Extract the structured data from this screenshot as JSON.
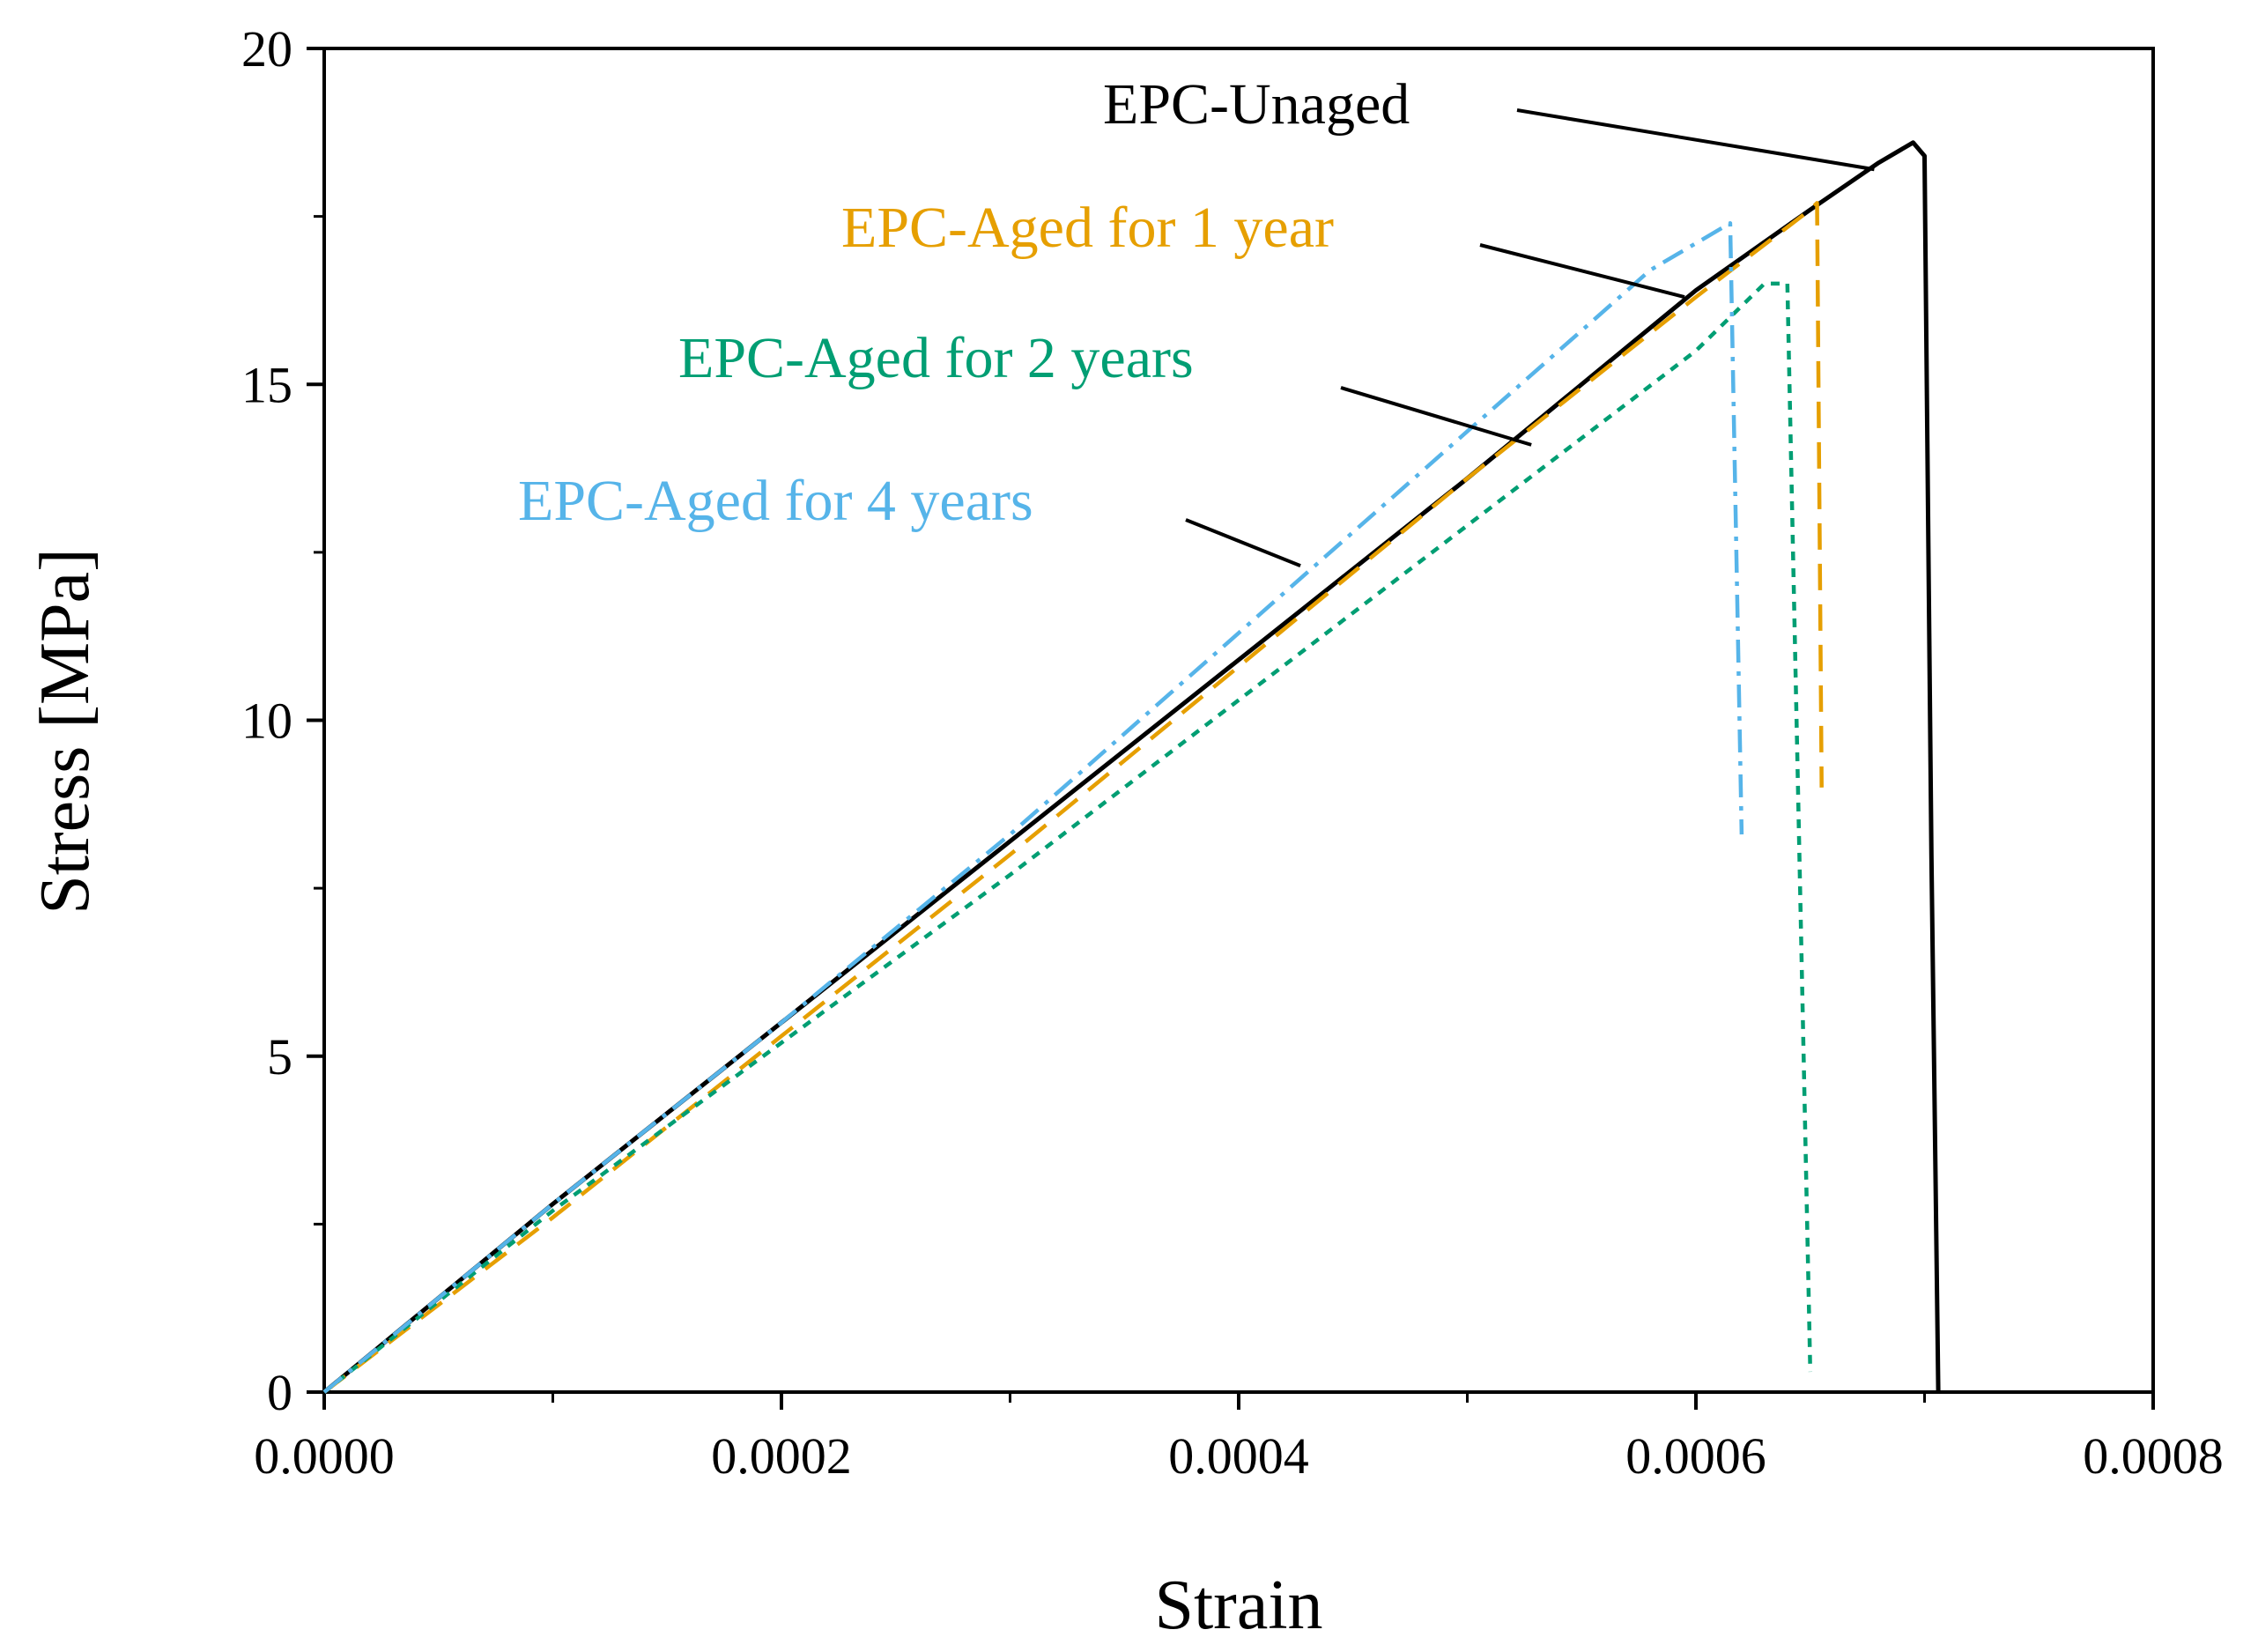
{
  "chart_data": {
    "type": "line",
    "title": "",
    "xlabel": "Strain",
    "ylabel": "Stress [MPa]",
    "xlim": [
      0,
      0.0008
    ],
    "ylim": [
      0,
      20
    ],
    "xticks": [
      "0.0000",
      "0.0002",
      "0.0004",
      "0.0006",
      "0.0008"
    ],
    "yticks": [
      "0",
      "5",
      "10",
      "15",
      "20"
    ],
    "grid": false,
    "legend": "annotations with leader lines",
    "series": [
      {
        "name": "EPC-Unaged",
        "color": "#000000",
        "dash": "solid",
        "x": [
          0,
          0.0001,
          0.0002,
          0.0003,
          0.0004,
          0.0005,
          0.0006,
          0.00065,
          0.00068,
          0.000695,
          0.0007,
          0.000703,
          0.000706
        ],
        "y": [
          0,
          2.8,
          5.5,
          8.2,
          10.9,
          13.6,
          16.4,
          17.6,
          18.3,
          18.6,
          18.4,
          8.0,
          0
        ]
      },
      {
        "name": "EPC-Aged for 1 year",
        "color": "#E69F00",
        "dash": "long-dash",
        "x": [
          0,
          0.0001,
          0.0002,
          0.0003,
          0.0004,
          0.0005,
          0.0006,
          0.00065,
          0.000653,
          0.000655
        ],
        "y": [
          0,
          2.6,
          5.3,
          8.0,
          10.8,
          13.6,
          16.3,
          17.6,
          17.7,
          9.0
        ]
      },
      {
        "name": "EPC-Aged for 2 years",
        "color": "#009E73",
        "dash": "short-dash",
        "x": [
          0,
          0.0001,
          0.0002,
          0.0003,
          0.0004,
          0.0005,
          0.0006,
          0.00063,
          0.00064,
          0.00065
        ],
        "y": [
          0,
          2.7,
          5.2,
          7.7,
          10.3,
          12.9,
          15.5,
          16.5,
          16.5,
          0.3
        ]
      },
      {
        "name": "EPC-Aged for 4 years",
        "color": "#56B4E9",
        "dash": "dash-dot",
        "x": [
          0,
          0.0001,
          0.0002,
          0.0003,
          0.0004,
          0.0005,
          0.00058,
          0.000615,
          0.00062
        ],
        "y": [
          0,
          2.8,
          5.5,
          8.3,
          11.3,
          14.3,
          16.7,
          17.4,
          8.3
        ]
      }
    ],
    "annotations": [
      {
        "text": "EPC-Unaged",
        "color": "#000000",
        "at": [
          0.000678,
          18.2
        ]
      },
      {
        "text": "EPC-Aged for 1 year",
        "color": "#E69F00",
        "at": [
          0.000595,
          16.3
        ]
      },
      {
        "text": "EPC-Aged for 2 years",
        "color": "#009E73",
        "at": [
          0.000528,
          14.1
        ]
      },
      {
        "text": "EPC-Aged for 4 years",
        "color": "#56B4E9",
        "at": [
          0.000427,
          12.3
        ]
      }
    ]
  }
}
